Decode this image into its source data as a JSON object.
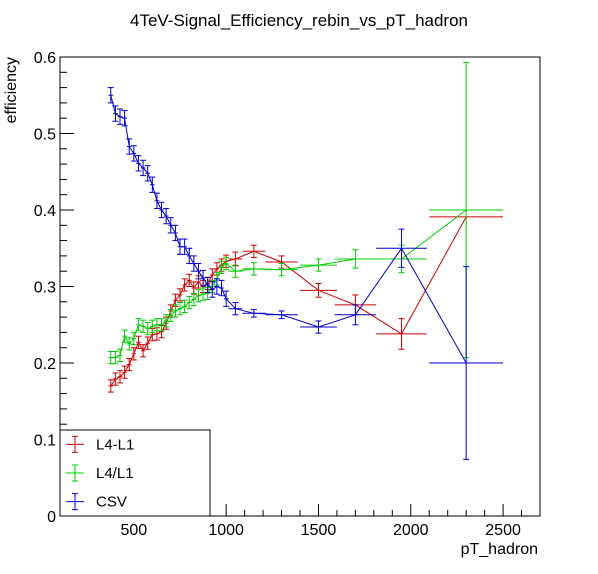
{
  "chart_data": {
    "type": "scatter",
    "title": "4TeV-Signal_Efficiency_rebin_vs_pT_hadron",
    "xlabel": "pT_hadron",
    "ylabel": "efficiency",
    "xlim": [
      100,
      2700
    ],
    "ylim": [
      0,
      0.6
    ],
    "x_ticks": [
      500,
      1000,
      1500,
      2000,
      2500
    ],
    "x_tick_labels": [
      "500",
      "1000",
      "1500",
      "2000",
      "2500"
    ],
    "y_ticks": [
      0,
      0.1,
      0.2,
      0.3,
      0.4,
      0.5,
      0.6
    ],
    "y_tick_labels": [
      "0",
      "0.1",
      "0.2",
      "0.3",
      "0.4",
      "0.5",
      "0.6"
    ],
    "grid": false,
    "legend_position": "bottom-left",
    "series": [
      {
        "name": "L4-L1",
        "color": "#cc0000",
        "points": [
          {
            "x": 375,
            "y": 0.17,
            "xerr": 12.5,
            "yerr": 0.008
          },
          {
            "x": 400,
            "y": 0.179,
            "xerr": 12.5,
            "yerr": 0.008
          },
          {
            "x": 425,
            "y": 0.182,
            "xerr": 12.5,
            "yerr": 0.008
          },
          {
            "x": 450,
            "y": 0.188,
            "xerr": 12.5,
            "yerr": 0.008
          },
          {
            "x": 475,
            "y": 0.198,
            "xerr": 12.5,
            "yerr": 0.008
          },
          {
            "x": 500,
            "y": 0.212,
            "xerr": 12.5,
            "yerr": 0.008
          },
          {
            "x": 525,
            "y": 0.227,
            "xerr": 12.5,
            "yerr": 0.008
          },
          {
            "x": 550,
            "y": 0.216,
            "xerr": 12.5,
            "yerr": 0.008
          },
          {
            "x": 575,
            "y": 0.226,
            "xerr": 12.5,
            "yerr": 0.008
          },
          {
            "x": 600,
            "y": 0.237,
            "xerr": 12.5,
            "yerr": 0.008
          },
          {
            "x": 625,
            "y": 0.238,
            "xerr": 12.5,
            "yerr": 0.008
          },
          {
            "x": 650,
            "y": 0.241,
            "xerr": 12.5,
            "yerr": 0.008
          },
          {
            "x": 675,
            "y": 0.252,
            "xerr": 12.5,
            "yerr": 0.008
          },
          {
            "x": 700,
            "y": 0.268,
            "xerr": 12.5,
            "yerr": 0.008
          },
          {
            "x": 725,
            "y": 0.282,
            "xerr": 12.5,
            "yerr": 0.008
          },
          {
            "x": 750,
            "y": 0.289,
            "xerr": 12.5,
            "yerr": 0.008
          },
          {
            "x": 775,
            "y": 0.302,
            "xerr": 12.5,
            "yerr": 0.008
          },
          {
            "x": 800,
            "y": 0.308,
            "xerr": 12.5,
            "yerr": 0.008
          },
          {
            "x": 825,
            "y": 0.298,
            "xerr": 12.5,
            "yerr": 0.008
          },
          {
            "x": 850,
            "y": 0.306,
            "xerr": 12.5,
            "yerr": 0.008
          },
          {
            "x": 875,
            "y": 0.3,
            "xerr": 12.5,
            "yerr": 0.008
          },
          {
            "x": 900,
            "y": 0.304,
            "xerr": 12.5,
            "yerr": 0.008
          },
          {
            "x": 925,
            "y": 0.315,
            "xerr": 12.5,
            "yerr": 0.008
          },
          {
            "x": 950,
            "y": 0.323,
            "xerr": 12.5,
            "yerr": 0.008
          },
          {
            "x": 975,
            "y": 0.328,
            "xerr": 12.5,
            "yerr": 0.008
          },
          {
            "x": 1000,
            "y": 0.333,
            "xerr": 12.5,
            "yerr": 0.008
          },
          {
            "x": 1050,
            "y": 0.336,
            "xerr": 37.5,
            "yerr": 0.009
          },
          {
            "x": 1150,
            "y": 0.346,
            "xerr": 62.5,
            "yerr": 0.008
          },
          {
            "x": 1300,
            "y": 0.332,
            "xerr": 87.5,
            "yerr": 0.008
          },
          {
            "x": 1500,
            "y": 0.295,
            "xerr": 100,
            "yerr": 0.009
          },
          {
            "x": 1700,
            "y": 0.276,
            "xerr": 112.5,
            "yerr": 0.013
          },
          {
            "x": 1950,
            "y": 0.238,
            "xerr": 137.5,
            "yerr": 0.02
          },
          {
            "x": 2300,
            "y": 0.391,
            "xerr": 200,
            "yerr": 0.0
          }
        ]
      },
      {
        "name": "L4/L1",
        "color": "#00cc00",
        "points": [
          {
            "x": 375,
            "y": 0.207,
            "xerr": 12.5,
            "yerr": 0.008
          },
          {
            "x": 400,
            "y": 0.207,
            "xerr": 12.5,
            "yerr": 0.008
          },
          {
            "x": 425,
            "y": 0.21,
            "xerr": 12.5,
            "yerr": 0.008
          },
          {
            "x": 450,
            "y": 0.235,
            "xerr": 12.5,
            "yerr": 0.008
          },
          {
            "x": 475,
            "y": 0.225,
            "xerr": 12.5,
            "yerr": 0.008
          },
          {
            "x": 500,
            "y": 0.232,
            "xerr": 12.5,
            "yerr": 0.008
          },
          {
            "x": 525,
            "y": 0.25,
            "xerr": 12.5,
            "yerr": 0.008
          },
          {
            "x": 550,
            "y": 0.248,
            "xerr": 12.5,
            "yerr": 0.008
          },
          {
            "x": 575,
            "y": 0.245,
            "xerr": 12.5,
            "yerr": 0.008
          },
          {
            "x": 600,
            "y": 0.248,
            "xerr": 12.5,
            "yerr": 0.008
          },
          {
            "x": 625,
            "y": 0.25,
            "xerr": 12.5,
            "yerr": 0.008
          },
          {
            "x": 650,
            "y": 0.25,
            "xerr": 12.5,
            "yerr": 0.008
          },
          {
            "x": 675,
            "y": 0.255,
            "xerr": 12.5,
            "yerr": 0.008
          },
          {
            "x": 700,
            "y": 0.262,
            "xerr": 12.5,
            "yerr": 0.008
          },
          {
            "x": 725,
            "y": 0.268,
            "xerr": 12.5,
            "yerr": 0.008
          },
          {
            "x": 750,
            "y": 0.271,
            "xerr": 12.5,
            "yerr": 0.008
          },
          {
            "x": 775,
            "y": 0.274,
            "xerr": 12.5,
            "yerr": 0.008
          },
          {
            "x": 800,
            "y": 0.279,
            "xerr": 12.5,
            "yerr": 0.008
          },
          {
            "x": 825,
            "y": 0.283,
            "xerr": 12.5,
            "yerr": 0.008
          },
          {
            "x": 850,
            "y": 0.288,
            "xerr": 12.5,
            "yerr": 0.008
          },
          {
            "x": 875,
            "y": 0.29,
            "xerr": 12.5,
            "yerr": 0.008
          },
          {
            "x": 900,
            "y": 0.291,
            "xerr": 12.5,
            "yerr": 0.008
          },
          {
            "x": 925,
            "y": 0.3,
            "xerr": 12.5,
            "yerr": 0.008
          },
          {
            "x": 950,
            "y": 0.31,
            "xerr": 12.5,
            "yerr": 0.008
          },
          {
            "x": 975,
            "y": 0.325,
            "xerr": 12.5,
            "yerr": 0.008
          },
          {
            "x": 1000,
            "y": 0.33,
            "xerr": 12.5,
            "yerr": 0.008
          },
          {
            "x": 1050,
            "y": 0.32,
            "xerr": 37.5,
            "yerr": 0.008
          },
          {
            "x": 1150,
            "y": 0.323,
            "xerr": 62.5,
            "yerr": 0.008
          },
          {
            "x": 1300,
            "y": 0.322,
            "xerr": 87.5,
            "yerr": 0.008
          },
          {
            "x": 1500,
            "y": 0.328,
            "xerr": 100,
            "yerr": 0.008
          },
          {
            "x": 1700,
            "y": 0.336,
            "xerr": 112.5,
            "yerr": 0.012
          },
          {
            "x": 1950,
            "y": 0.336,
            "xerr": 137.5,
            "yerr": 0.018
          },
          {
            "x": 2300,
            "y": 0.4,
            "xerr": 200,
            "yerr": 0.193
          }
        ]
      },
      {
        "name": "CSV",
        "color": "#0000cc",
        "points": [
          {
            "x": 375,
            "y": 0.55,
            "xerr": 12.5,
            "yerr": 0.01
          },
          {
            "x": 400,
            "y": 0.526,
            "xerr": 12.5,
            "yerr": 0.01
          },
          {
            "x": 425,
            "y": 0.522,
            "xerr": 12.5,
            "yerr": 0.01
          },
          {
            "x": 450,
            "y": 0.52,
            "xerr": 12.5,
            "yerr": 0.01
          },
          {
            "x": 475,
            "y": 0.483,
            "xerr": 12.5,
            "yerr": 0.01
          },
          {
            "x": 500,
            "y": 0.474,
            "xerr": 12.5,
            "yerr": 0.01
          },
          {
            "x": 525,
            "y": 0.461,
            "xerr": 12.5,
            "yerr": 0.01
          },
          {
            "x": 550,
            "y": 0.455,
            "xerr": 12.5,
            "yerr": 0.01
          },
          {
            "x": 575,
            "y": 0.448,
            "xerr": 12.5,
            "yerr": 0.01
          },
          {
            "x": 600,
            "y": 0.433,
            "xerr": 12.5,
            "yerr": 0.01
          },
          {
            "x": 625,
            "y": 0.412,
            "xerr": 12.5,
            "yerr": 0.01
          },
          {
            "x": 650,
            "y": 0.4,
            "xerr": 12.5,
            "yerr": 0.01
          },
          {
            "x": 675,
            "y": 0.392,
            "xerr": 12.5,
            "yerr": 0.01
          },
          {
            "x": 700,
            "y": 0.38,
            "xerr": 12.5,
            "yerr": 0.01
          },
          {
            "x": 725,
            "y": 0.37,
            "xerr": 12.5,
            "yerr": 0.01
          },
          {
            "x": 750,
            "y": 0.352,
            "xerr": 12.5,
            "yerr": 0.01
          },
          {
            "x": 775,
            "y": 0.352,
            "xerr": 12.5,
            "yerr": 0.01
          },
          {
            "x": 800,
            "y": 0.34,
            "xerr": 12.5,
            "yerr": 0.01
          },
          {
            "x": 825,
            "y": 0.33,
            "xerr": 12.5,
            "yerr": 0.01
          },
          {
            "x": 850,
            "y": 0.32,
            "xerr": 12.5,
            "yerr": 0.01
          },
          {
            "x": 875,
            "y": 0.311,
            "xerr": 12.5,
            "yerr": 0.01
          },
          {
            "x": 900,
            "y": 0.302,
            "xerr": 12.5,
            "yerr": 0.01
          },
          {
            "x": 925,
            "y": 0.296,
            "xerr": 12.5,
            "yerr": 0.01
          },
          {
            "x": 950,
            "y": 0.3,
            "xerr": 12.5,
            "yerr": 0.01
          },
          {
            "x": 975,
            "y": 0.298,
            "xerr": 12.5,
            "yerr": 0.01
          },
          {
            "x": 1000,
            "y": 0.284,
            "xerr": 12.5,
            "yerr": 0.01
          },
          {
            "x": 1050,
            "y": 0.271,
            "xerr": 37.5,
            "yerr": 0.008
          },
          {
            "x": 1150,
            "y": 0.265,
            "xerr": 62.5,
            "yerr": 0.005
          },
          {
            "x": 1300,
            "y": 0.263,
            "xerr": 87.5,
            "yerr": 0.005
          },
          {
            "x": 1500,
            "y": 0.247,
            "xerr": 100,
            "yerr": 0.008
          },
          {
            "x": 1700,
            "y": 0.263,
            "xerr": 112.5,
            "yerr": 0.013
          },
          {
            "x": 1950,
            "y": 0.35,
            "xerr": 137.5,
            "yerr": 0.025
          },
          {
            "x": 2300,
            "y": 0.2,
            "xerr": 200,
            "yerr": 0.126
          }
        ]
      }
    ]
  }
}
